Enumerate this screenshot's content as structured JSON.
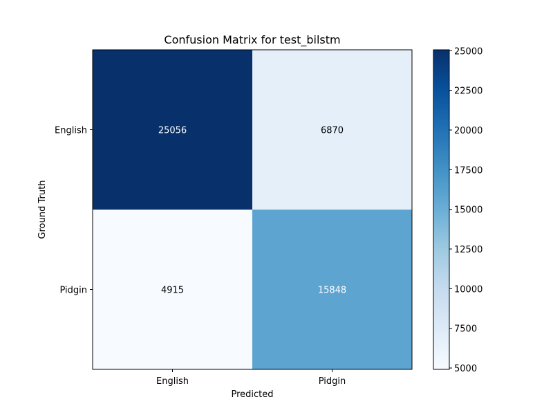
{
  "chart_data": {
    "type": "heatmap",
    "title": "Confusion Matrix for test_bilstm",
    "xlabel": "Predicted",
    "ylabel": "Ground Truth",
    "x_categories": [
      "English",
      "Pidgin"
    ],
    "y_categories": [
      "English",
      "Pidgin"
    ],
    "values": [
      [
        25056,
        6870
      ],
      [
        4915,
        15848
      ]
    ],
    "colormap": "Blues",
    "color_range": [
      4915,
      25056
    ],
    "colorbar_ticks": [
      5000,
      7500,
      10000,
      12500,
      15000,
      17500,
      20000,
      22500,
      25000
    ],
    "grid": false
  },
  "colors": {
    "scale": [
      "#f7fbff",
      "#deebf7",
      "#c6dbef",
      "#9ecae1",
      "#6baed6",
      "#4292c6",
      "#2171b5",
      "#08519c",
      "#08306b"
    ],
    "light_text": "#ffffff",
    "dark_text": "#000000",
    "axes": "#000000"
  }
}
